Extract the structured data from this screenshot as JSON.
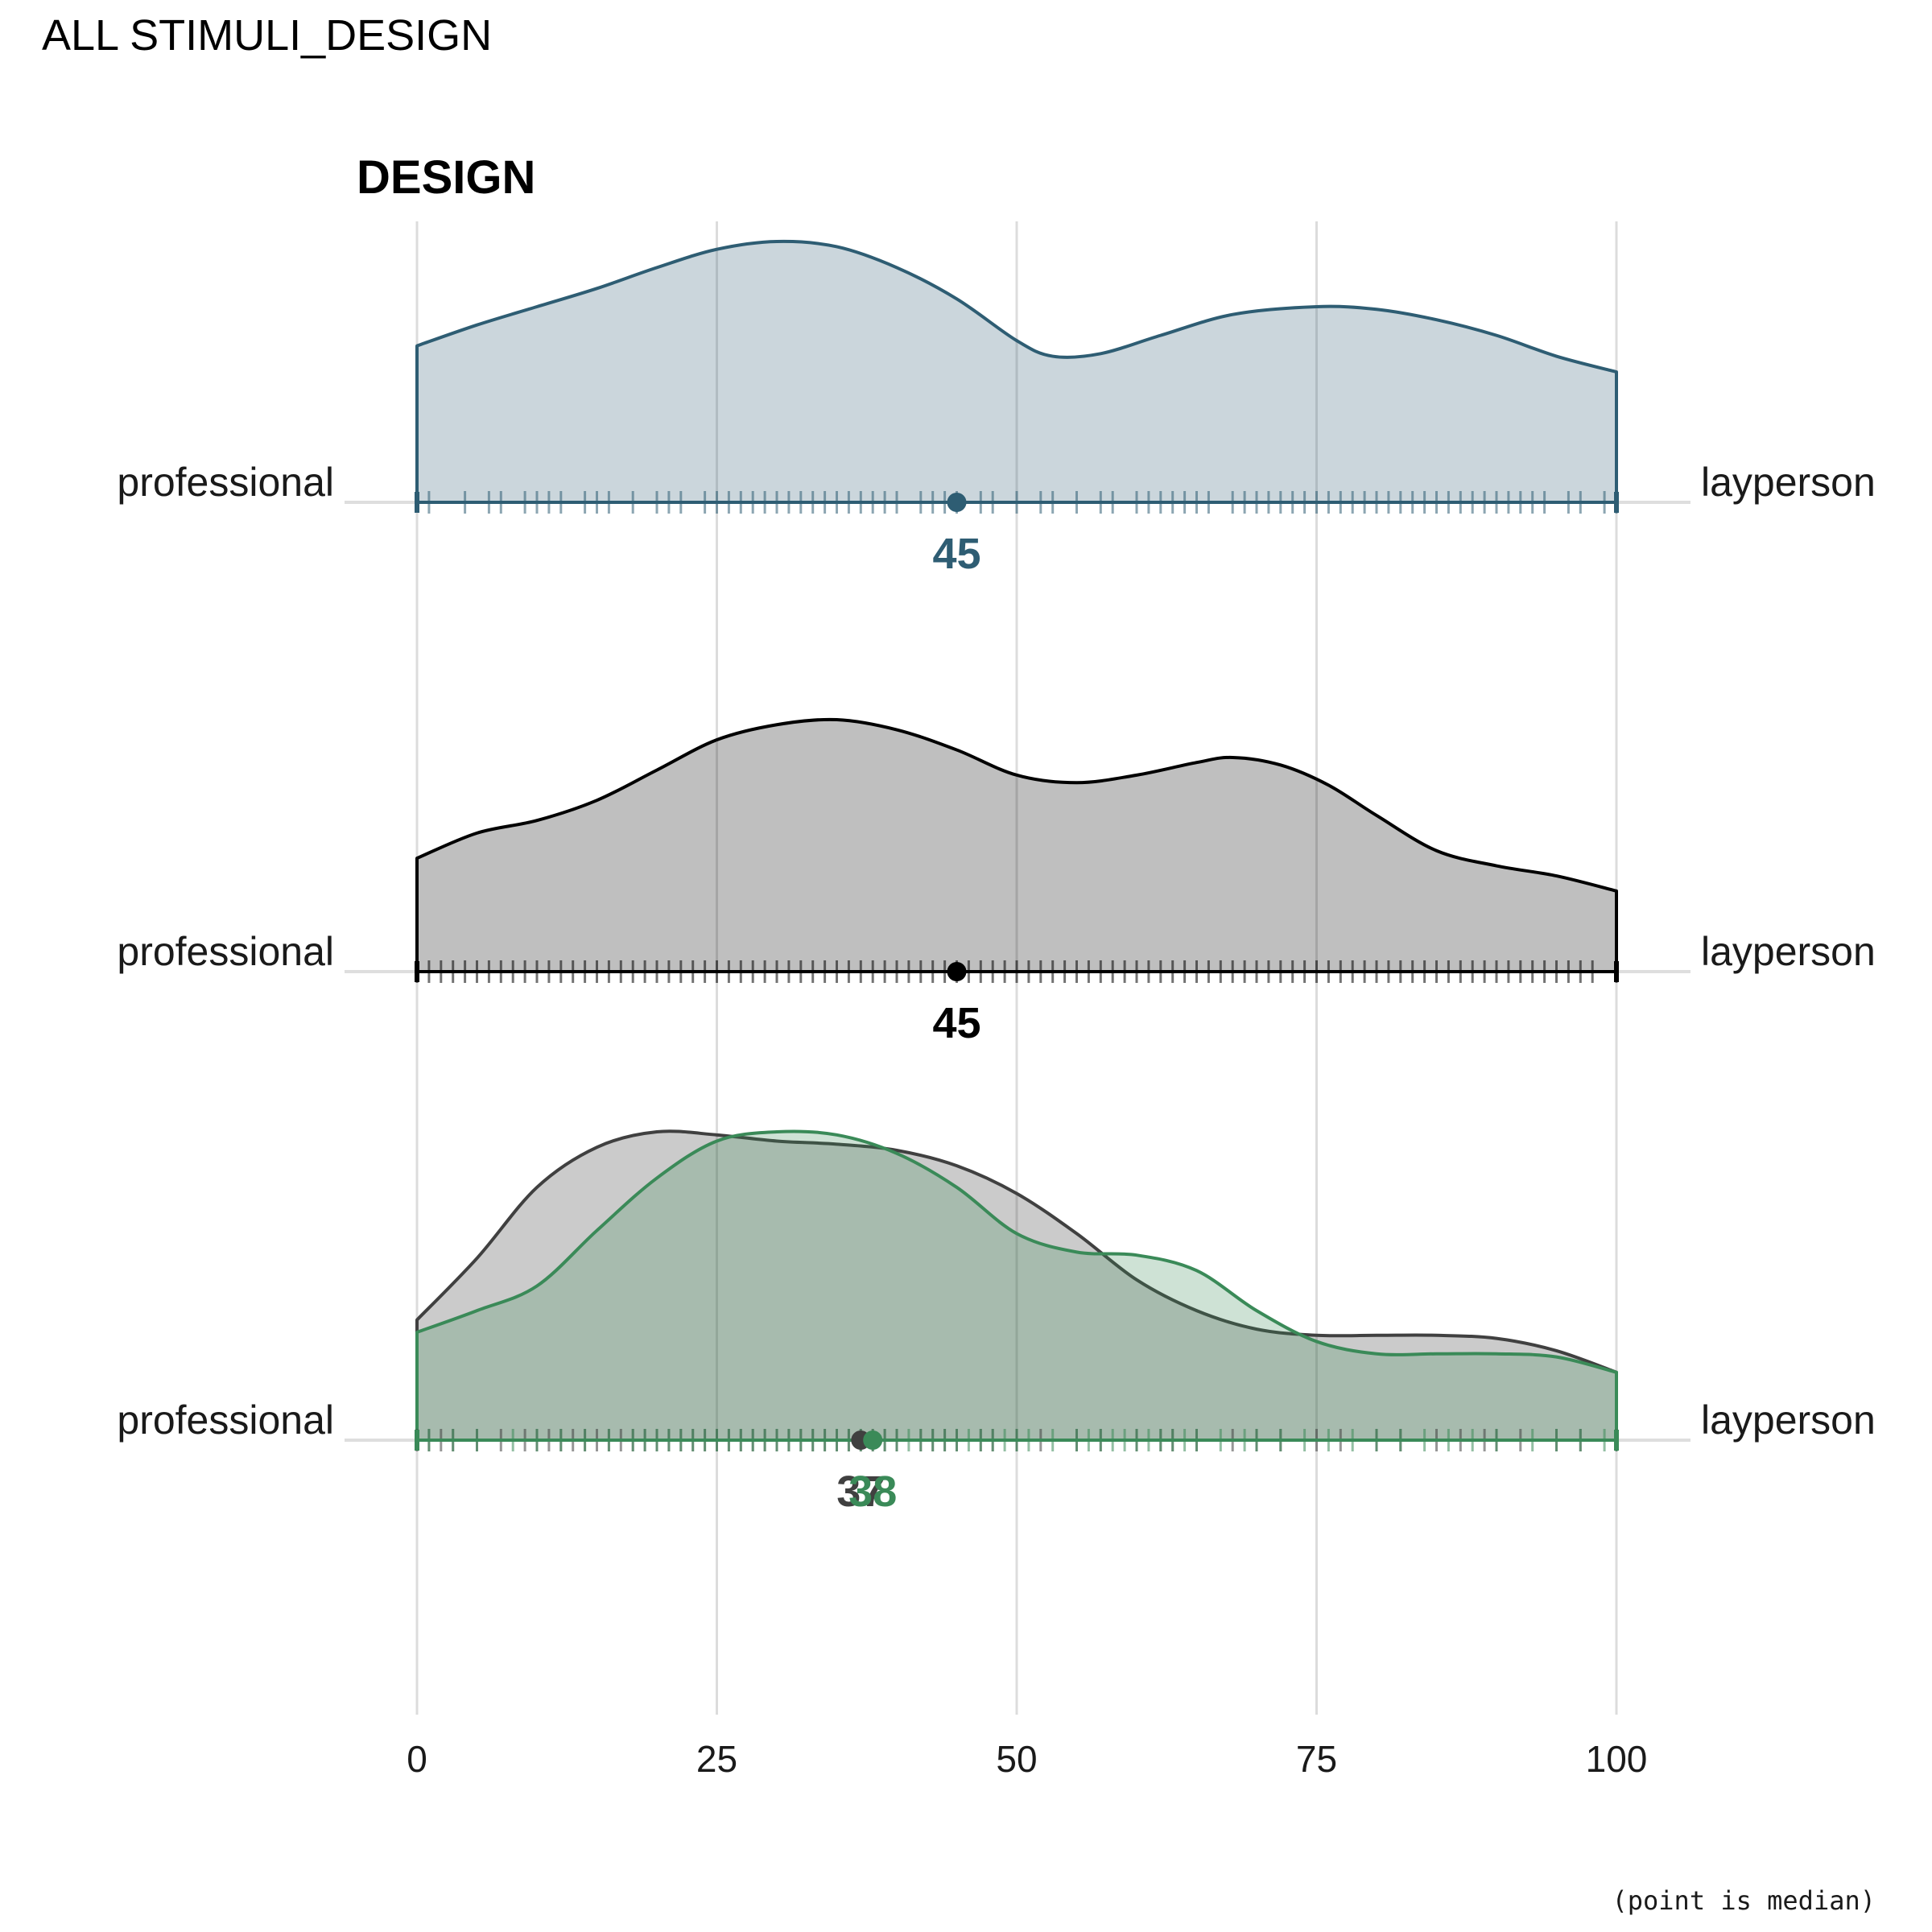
{
  "page_title": "ALL STIMULI_DESIGN",
  "caption": "(point is median)",
  "chart_data": {
    "type": "area",
    "title": "DESIGN",
    "xlabel": "",
    "ylabel": "",
    "xlim": [
      0,
      100
    ],
    "x_ticks": [
      0,
      25,
      50,
      75,
      100
    ],
    "grid": true,
    "left_anchor_label": "professional",
    "right_anchor_label": "layperson",
    "rows": [
      {
        "series": [
          {
            "color": "#2e5d73",
            "fill_opacity": 0.25,
            "median": 45,
            "median_label": "45",
            "density": [
              [
                0,
                0.6
              ],
              [
                5,
                0.68
              ],
              [
                10,
                0.75
              ],
              [
                15,
                0.82
              ],
              [
                20,
                0.9
              ],
              [
                25,
                0.97
              ],
              [
                30,
                1.0
              ],
              [
                35,
                0.98
              ],
              [
                40,
                0.9
              ],
              [
                45,
                0.78
              ],
              [
                50,
                0.62
              ],
              [
                53,
                0.56
              ],
              [
                57,
                0.57
              ],
              [
                62,
                0.64
              ],
              [
                68,
                0.72
              ],
              [
                75,
                0.75
              ],
              [
                80,
                0.74
              ],
              [
                85,
                0.7
              ],
              [
                90,
                0.64
              ],
              [
                95,
                0.56
              ],
              [
                100,
                0.5
              ]
            ],
            "rug": [
              1,
              4,
              6,
              7,
              9,
              10,
              11,
              12,
              14,
              15,
              16,
              18,
              20,
              21,
              22,
              24,
              25,
              26,
              27,
              28,
              29,
              30,
              31,
              32,
              33,
              34,
              35,
              36,
              37,
              38,
              39,
              40,
              42,
              43,
              44,
              45,
              47,
              48,
              50,
              52,
              53,
              55,
              57,
              58,
              60,
              61,
              62,
              63,
              64,
              65,
              66,
              68,
              69,
              70,
              71,
              72,
              73,
              74,
              75,
              76,
              77,
              78,
              79,
              80,
              81,
              82,
              83,
              84,
              85,
              86,
              87,
              88,
              89,
              90,
              91,
              92,
              93,
              94,
              96,
              97,
              99,
              100
            ]
          }
        ]
      },
      {
        "series": [
          {
            "color": "#000000",
            "fill_opacity": 0.25,
            "median": 45,
            "median_label": "45",
            "density": [
              [
                0,
                0.45
              ],
              [
                5,
                0.55
              ],
              [
                10,
                0.6
              ],
              [
                15,
                0.68
              ],
              [
                20,
                0.8
              ],
              [
                25,
                0.92
              ],
              [
                30,
                0.98
              ],
              [
                35,
                1.0
              ],
              [
                40,
                0.96
              ],
              [
                45,
                0.88
              ],
              [
                50,
                0.78
              ],
              [
                55,
                0.75
              ],
              [
                60,
                0.78
              ],
              [
                65,
                0.83
              ],
              [
                68,
                0.85
              ],
              [
                72,
                0.82
              ],
              [
                76,
                0.74
              ],
              [
                80,
                0.62
              ],
              [
                85,
                0.48
              ],
              [
                90,
                0.42
              ],
              [
                95,
                0.38
              ],
              [
                100,
                0.32
              ]
            ],
            "rug": [
              0,
              1,
              2,
              3,
              4,
              5,
              6,
              7,
              8,
              9,
              10,
              11,
              12,
              13,
              14,
              15,
              16,
              17,
              18,
              19,
              20,
              21,
              22,
              23,
              24,
              25,
              26,
              27,
              28,
              29,
              30,
              31,
              32,
              33,
              34,
              35,
              36,
              37,
              38,
              39,
              40,
              41,
              42,
              43,
              44,
              45,
              46,
              47,
              48,
              49,
              50,
              51,
              52,
              53,
              54,
              55,
              56,
              57,
              58,
              59,
              60,
              61,
              62,
              63,
              64,
              65,
              66,
              67,
              68,
              69,
              70,
              71,
              72,
              73,
              74,
              75,
              76,
              77,
              78,
              79,
              80,
              81,
              82,
              83,
              84,
              85,
              86,
              87,
              88,
              89,
              90,
              91,
              92,
              93,
              94,
              95,
              96,
              97,
              98,
              100
            ]
          }
        ]
      },
      {
        "series": [
          {
            "color": "#404040",
            "fill_opacity": 0.27,
            "median": 37,
            "median_label": "37",
            "density": [
              [
                0,
                0.39
              ],
              [
                5,
                0.59
              ],
              [
                10,
                0.82
              ],
              [
                15,
                0.95
              ],
              [
                20,
                1.0
              ],
              [
                25,
                0.99
              ],
              [
                30,
                0.97
              ],
              [
                35,
                0.96
              ],
              [
                40,
                0.94
              ],
              [
                45,
                0.89
              ],
              [
                50,
                0.8
              ],
              [
                55,
                0.67
              ],
              [
                60,
                0.52
              ],
              [
                65,
                0.42
              ],
              [
                70,
                0.36
              ],
              [
                75,
                0.34
              ],
              [
                80,
                0.34
              ],
              [
                85,
                0.34
              ],
              [
                90,
                0.33
              ],
              [
                95,
                0.29
              ],
              [
                100,
                0.22
              ]
            ],
            "rug": [
              0,
              1,
              2,
              3,
              5,
              7,
              9,
              10,
              11,
              12,
              13,
              14,
              15,
              16,
              17,
              18,
              19,
              20,
              21,
              22,
              23,
              24,
              25,
              26,
              27,
              28,
              29,
              30,
              31,
              32,
              33,
              34,
              35,
              36,
              37,
              38,
              39,
              40,
              42,
              43,
              44,
              45,
              47,
              48,
              50,
              52,
              55,
              57,
              60,
              62,
              63,
              65,
              68,
              70,
              72,
              75,
              77,
              80,
              82,
              85,
              87,
              89,
              90,
              92,
              95,
              97,
              100
            ]
          },
          {
            "color": "#3a8a58",
            "fill_opacity": 0.25,
            "median": 38,
            "median_label": "38",
            "density": [
              [
                0,
                0.35
              ],
              [
                5,
                0.42
              ],
              [
                10,
                0.5
              ],
              [
                15,
                0.68
              ],
              [
                20,
                0.85
              ],
              [
                25,
                0.97
              ],
              [
                30,
                1.0
              ],
              [
                35,
                0.99
              ],
              [
                40,
                0.93
              ],
              [
                45,
                0.82
              ],
              [
                50,
                0.67
              ],
              [
                55,
                0.61
              ],
              [
                60,
                0.6
              ],
              [
                65,
                0.55
              ],
              [
                70,
                0.42
              ],
              [
                75,
                0.32
              ],
              [
                80,
                0.28
              ],
              [
                85,
                0.28
              ],
              [
                90,
                0.28
              ],
              [
                95,
                0.27
              ],
              [
                100,
                0.22
              ]
            ],
            "rug": [
              1,
              3,
              5,
              8,
              10,
              12,
              14,
              16,
              18,
              19,
              20,
              21,
              22,
              23,
              24,
              25,
              26,
              27,
              28,
              29,
              30,
              31,
              32,
              33,
              34,
              35,
              36,
              37,
              38,
              39,
              40,
              41,
              42,
              43,
              44,
              45,
              46,
              47,
              48,
              49,
              50,
              51,
              53,
              55,
              56,
              57,
              58,
              59,
              60,
              61,
              62,
              63,
              64,
              65,
              67,
              69,
              70,
              72,
              74,
              76,
              78,
              80,
              82,
              84,
              86,
              88,
              90,
              93,
              95,
              97,
              99,
              100
            ]
          }
        ]
      }
    ]
  }
}
